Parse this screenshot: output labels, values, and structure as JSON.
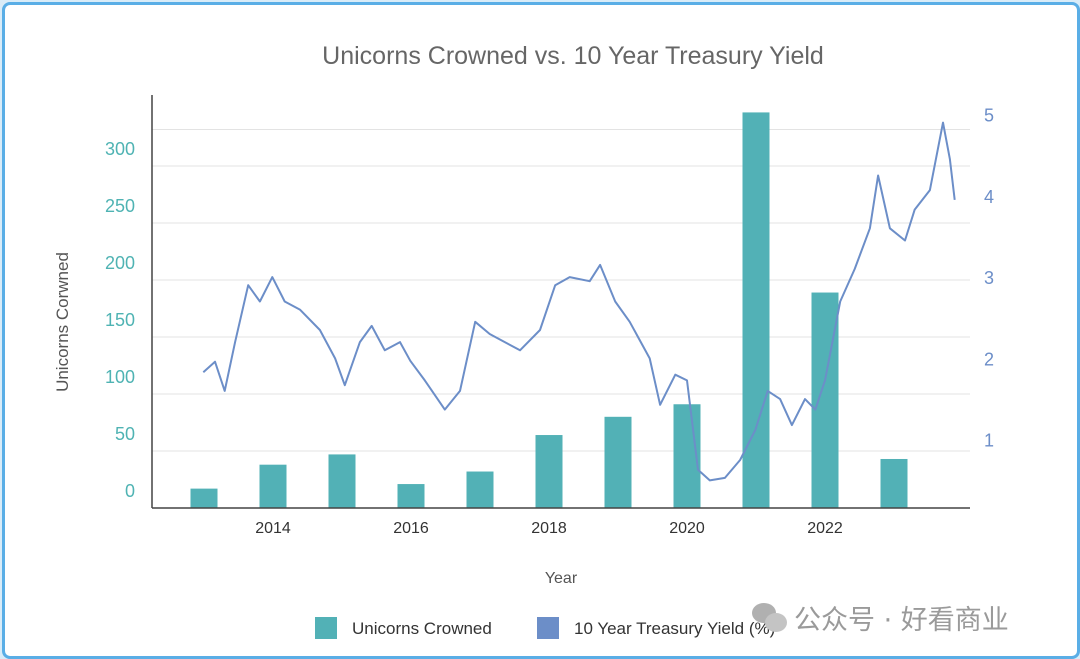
{
  "chart_data": {
    "type": "bar+line",
    "title": "Unicorns Crowned vs. 10 Year Treasury Yield",
    "xlabel": "Year",
    "ylabel": "Unicorns Corwned",
    "x_ticks": [
      "2014",
      "2016",
      "2018",
      "2020",
      "2022"
    ],
    "y_left_ticks": [
      "0",
      "50",
      "100",
      "150",
      "200",
      "250",
      "300"
    ],
    "y_right_ticks": [
      "1",
      "2",
      "3",
      "4",
      "5"
    ],
    "ylim_left": [
      0,
      362
    ],
    "ylim_right": [
      0.16,
      5.24
    ],
    "grid": true,
    "legend_position": "bottom",
    "series": [
      {
        "name": "Unicorns Crowned",
        "type": "bar",
        "axis": "left",
        "color": "#52b1b6",
        "x": [
          2013,
          2014,
          2015,
          2016,
          2017,
          2018,
          2019,
          2020,
          2021,
          2022,
          2023
        ],
        "values": [
          17,
          38,
          47,
          21,
          32,
          64,
          80,
          91,
          347,
          189,
          43
        ]
      },
      {
        "name": "10 Year Treasury Yield (%)",
        "type": "line",
        "axis": "right",
        "color": "#6c8ec8",
        "points": [
          [
            2012.99,
            1.83
          ],
          [
            2013.16,
            1.96
          ],
          [
            2013.3,
            1.6
          ],
          [
            2013.45,
            2.2
          ],
          [
            2013.64,
            2.9
          ],
          [
            2013.81,
            2.7
          ],
          [
            2013.99,
            3.0
          ],
          [
            2014.17,
            2.7
          ],
          [
            2014.39,
            2.6
          ],
          [
            2014.68,
            2.35
          ],
          [
            2014.9,
            2.0
          ],
          [
            2015.04,
            1.67
          ],
          [
            2015.26,
            2.2
          ],
          [
            2015.43,
            2.4
          ],
          [
            2015.62,
            2.1
          ],
          [
            2015.84,
            2.2
          ],
          [
            2015.99,
            1.97
          ],
          [
            2016.2,
            1.73
          ],
          [
            2016.49,
            1.37
          ],
          [
            2016.71,
            1.6
          ],
          [
            2016.93,
            2.45
          ],
          [
            2017.14,
            2.3
          ],
          [
            2017.36,
            2.2
          ],
          [
            2017.58,
            2.1
          ],
          [
            2017.87,
            2.35
          ],
          [
            2018.09,
            2.9
          ],
          [
            2018.3,
            3.0
          ],
          [
            2018.59,
            2.95
          ],
          [
            2018.74,
            3.15
          ],
          [
            2018.96,
            2.7
          ],
          [
            2019.17,
            2.45
          ],
          [
            2019.46,
            2.0
          ],
          [
            2019.61,
            1.43
          ],
          [
            2019.83,
            1.8
          ],
          [
            2020.0,
            1.73
          ],
          [
            2020.16,
            0.63
          ],
          [
            2020.33,
            0.5
          ],
          [
            2020.55,
            0.53
          ],
          [
            2020.77,
            0.75
          ],
          [
            2020.99,
            1.12
          ],
          [
            2021.17,
            1.6
          ],
          [
            2021.35,
            1.5
          ],
          [
            2021.52,
            1.18
          ],
          [
            2021.71,
            1.5
          ],
          [
            2021.86,
            1.37
          ],
          [
            2022.0,
            1.73
          ],
          [
            2022.22,
            2.7
          ],
          [
            2022.43,
            3.1
          ],
          [
            2022.65,
            3.6
          ],
          [
            2022.77,
            4.25
          ],
          [
            2022.94,
            3.6
          ],
          [
            2023.16,
            3.45
          ],
          [
            2023.3,
            3.83
          ],
          [
            2023.52,
            4.07
          ],
          [
            2023.71,
            4.9
          ],
          [
            2023.81,
            4.45
          ],
          [
            2023.88,
            3.95
          ]
        ]
      }
    ]
  },
  "watermark": "公众号 · 好看商业"
}
